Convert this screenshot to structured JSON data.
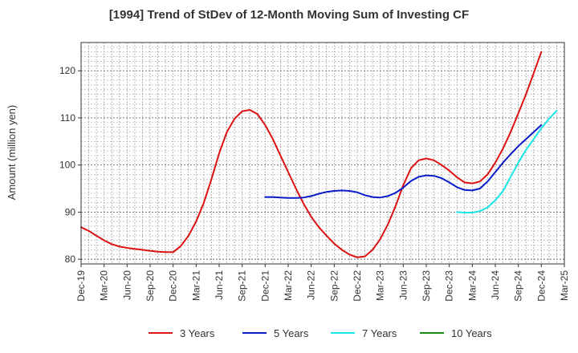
{
  "chart_data": {
    "type": "line",
    "title": "[1994]  Trend of StDev of 12-Month Moving Sum of Investing CF",
    "ylabel": "Amount (million yen)",
    "xlabel": "",
    "ylim": [
      79,
      126
    ],
    "yticks": [
      80,
      90,
      100,
      110,
      120
    ],
    "x_tick_labels": [
      "Dec-19",
      "Mar-20",
      "Jun-20",
      "Sep-20",
      "Dec-20",
      "Mar-21",
      "Jun-21",
      "Sep-21",
      "Dec-21",
      "Mar-22",
      "Jun-22",
      "Sep-22",
      "Dec-22",
      "Mar-23",
      "Jun-23",
      "Sep-23",
      "Dec-23",
      "Mar-24",
      "Jun-24",
      "Sep-24",
      "Dec-24",
      "Mar-25"
    ],
    "grid": true,
    "legend_position": "bottom",
    "series": [
      {
        "name": "3 Years",
        "color": "#dd1111",
        "start_index": 0,
        "values": [
          86.8,
          86.0,
          85.0,
          84.0,
          83.2,
          82.7,
          82.4,
          82.2,
          82.0,
          81.8,
          81.6,
          81.5,
          81.5,
          82.8,
          85.0,
          88.0,
          92.0,
          97.0,
          102.5,
          107.0,
          109.8,
          111.4,
          111.7,
          110.8,
          108.5,
          105.5,
          102.0,
          98.5,
          95.0,
          91.8,
          89.0,
          86.8,
          85.0,
          83.3,
          82.0,
          81.0,
          80.4,
          80.6,
          82.0,
          84.3,
          87.4,
          91.3,
          95.7,
          99.3,
          101.0,
          101.4,
          101.0,
          100.0,
          98.8,
          97.4,
          96.3,
          96.1,
          96.5,
          98.0,
          100.5,
          103.5,
          107.0,
          111.0,
          115.0,
          119.5,
          124.0
        ]
      },
      {
        "name": "5 Years",
        "color": "#0a1cc8",
        "start_index": 24,
        "values": [
          93.2,
          93.2,
          93.1,
          93.0,
          93.0,
          93.1,
          93.4,
          93.9,
          94.3,
          94.5,
          94.6,
          94.5,
          94.2,
          93.6,
          93.2,
          93.1,
          93.4,
          94.1,
          95.2,
          96.6,
          97.5,
          97.8,
          97.7,
          97.2,
          96.3,
          95.3,
          94.7,
          94.6,
          95.0,
          96.5,
          98.5,
          100.5,
          102.3,
          104.0,
          105.5,
          107.0,
          108.5
        ]
      },
      {
        "name": "7 Years",
        "color": "#19e6e6",
        "start_index": 49,
        "values": [
          90.0,
          89.9,
          89.9,
          90.2,
          91.0,
          92.5,
          94.5,
          97.5,
          100.5,
          103.2,
          105.5,
          107.8,
          109.8,
          111.5
        ]
      },
      {
        "name": "10 Years",
        "color": "#1a8a1a",
        "start_index": 0,
        "values": []
      }
    ]
  }
}
